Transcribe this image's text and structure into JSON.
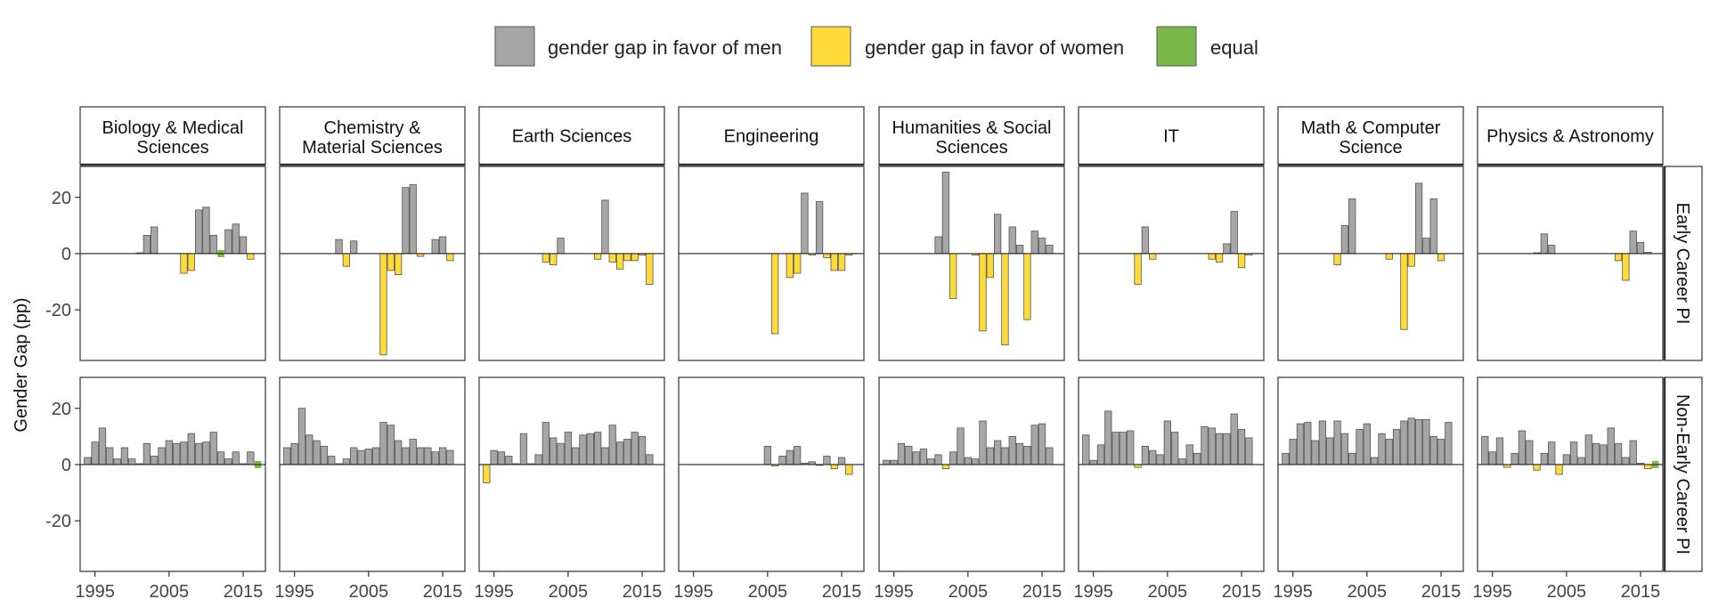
{
  "chart_data": {
    "type": "bar",
    "ylabel": "Gender Gap (pp)",
    "ylim": [
      -38,
      31
    ],
    "yticks": [
      20,
      0,
      -20
    ],
    "ytick_labels": [
      "20",
      "0",
      "-20"
    ],
    "xlim": [
      1993,
      2018
    ],
    "xticks": [
      1995,
      2005,
      2015
    ],
    "xtick_labels": [
      "1995",
      "2005",
      "2015"
    ],
    "legend": {
      "placement": "top",
      "entries": [
        {
          "key": "men",
          "label": "gender gap in favor of men",
          "color": "#a6a6a6"
        },
        {
          "key": "women",
          "label": "gender gap in favor of women",
          "color": "#ffdb3a"
        },
        {
          "key": "equal",
          "label": "equal",
          "color": "#7ab84a"
        }
      ]
    },
    "colors": {
      "men": "#a6a6a6",
      "women": "#ffdb3a",
      "equal": "#7ab84a",
      "bar_stroke": "#555555"
    },
    "columns": [
      {
        "lines": [
          "Biology & Medical",
          "Sciences"
        ]
      },
      {
        "lines": [
          "Chemistry &",
          "Material Sciences"
        ]
      },
      {
        "lines": [
          "Earth Sciences"
        ]
      },
      {
        "lines": [
          "Engineering"
        ]
      },
      {
        "lines": [
          "Humanities & Social",
          "Sciences"
        ]
      },
      {
        "lines": [
          "IT"
        ]
      },
      {
        "lines": [
          "Math & Computer",
          "Science"
        ]
      },
      {
        "lines": [
          "Physics & Astronomy"
        ]
      }
    ],
    "rows": [
      {
        "label": "Early Career PI"
      },
      {
        "label": "Non-Early Career PI"
      }
    ],
    "panels": [
      [
        {
          "years": [
            2001,
            2002,
            2003,
            2007,
            2008,
            2009,
            2010,
            2011,
            2012,
            2013,
            2014,
            2015,
            2016
          ],
          "values": [
            0.3,
            6.5,
            9.5,
            -7,
            -6,
            15.5,
            16.5,
            6.5,
            0,
            8.5,
            10.5,
            6,
            -2
          ]
        },
        {
          "years": [
            2001,
            2002,
            2003,
            2007,
            2008,
            2009,
            2010,
            2011,
            2012,
            2014,
            2015,
            2016
          ],
          "values": [
            5,
            -4.5,
            4.5,
            -36,
            -6,
            -7.5,
            23.5,
            24.5,
            -1,
            5,
            6,
            -2.5
          ]
        },
        {
          "years": [
            2002,
            2003,
            2004,
            2009,
            2010,
            2011,
            2012,
            2013,
            2014,
            2015,
            2016
          ],
          "values": [
            -3,
            -4,
            5.5,
            -2,
            19,
            -3,
            -5.5,
            -2.5,
            -2.5,
            -0.5,
            -11
          ]
        },
        {
          "years": [
            2006,
            2008,
            2009,
            2010,
            2011,
            2012,
            2013,
            2014,
            2015,
            2016
          ],
          "values": [
            -28.5,
            -8.5,
            -7,
            21.5,
            -0.5,
            18.5,
            -1.5,
            -6,
            -6,
            -0.5
          ]
        },
        {
          "years": [
            2001,
            2002,
            2003,
            2006,
            2007,
            2008,
            2009,
            2010,
            2011,
            2012,
            2013,
            2014,
            2015,
            2016
          ],
          "values": [
            6,
            29,
            -16,
            -0.5,
            -27.5,
            -8.5,
            14,
            -32.5,
            9.5,
            3,
            -23.5,
            8,
            5.5,
            3
          ]
        },
        {
          "years": [
            2001,
            2002,
            2003,
            2011,
            2012,
            2013,
            2014,
            2015,
            2016
          ],
          "values": [
            -11,
            9.5,
            -2,
            -2,
            -3,
            3.5,
            15,
            -5,
            -0.5
          ]
        },
        {
          "years": [
            2001,
            2002,
            2003,
            2008,
            2010,
            2011,
            2012,
            2013,
            2014,
            2015
          ],
          "values": [
            -4,
            10,
            19.5,
            -2,
            -27,
            -4.5,
            25,
            5.5,
            19.5,
            -2.5
          ]
        },
        {
          "years": [
            2001,
            2002,
            2003,
            2012,
            2013,
            2014,
            2015,
            2016
          ],
          "values": [
            0.3,
            7,
            3,
            -2.5,
            -9.5,
            8,
            4,
            0.5
          ]
        }
      ],
      [
        {
          "years": [
            1994,
            1995,
            1996,
            1997,
            1998,
            1999,
            2000,
            2001,
            2002,
            2003,
            2004,
            2005,
            2006,
            2007,
            2008,
            2009,
            2010,
            2011,
            2012,
            2013,
            2014,
            2015,
            2016,
            2017
          ],
          "values": [
            2.5,
            8,
            13,
            6,
            2,
            6,
            2,
            0.3,
            7.5,
            3,
            6,
            8.5,
            7.5,
            8,
            11,
            7.5,
            8,
            11.5,
            4.5,
            2,
            4.5,
            0.3,
            4.5,
            0
          ]
        },
        {
          "years": [
            1994,
            1995,
            1996,
            1997,
            1998,
            1999,
            2000,
            2001,
            2002,
            2003,
            2004,
            2005,
            2006,
            2007,
            2008,
            2009,
            2010,
            2011,
            2012,
            2013,
            2014,
            2015,
            2016
          ],
          "values": [
            6,
            7.5,
            20,
            10.5,
            8.5,
            6.5,
            3,
            0.3,
            2,
            6,
            5,
            5.5,
            6,
            15,
            14,
            8.5,
            6,
            9,
            6,
            6,
            4.5,
            6,
            5
          ]
        },
        {
          "years": [
            1994,
            1995,
            1996,
            1997,
            1998,
            1999,
            2000,
            2001,
            2002,
            2003,
            2004,
            2005,
            2006,
            2007,
            2008,
            2009,
            2010,
            2011,
            2012,
            2013,
            2014,
            2015,
            2016
          ],
          "values": [
            -6.5,
            5,
            4.5,
            3,
            0.3,
            11,
            0.3,
            3.5,
            15,
            9.5,
            7.5,
            11.5,
            6,
            10.5,
            11,
            11.5,
            6,
            14,
            8,
            9,
            11.5,
            10,
            3.5
          ]
        },
        {
          "years": [
            2005,
            2006,
            2007,
            2008,
            2009,
            2010,
            2011,
            2012,
            2013,
            2014,
            2015,
            2016
          ],
          "values": [
            6.5,
            -0.5,
            3,
            5,
            6.5,
            0.5,
            1,
            -0.3,
            3,
            -1.5,
            2.5,
            -3.5
          ]
        },
        {
          "years": [
            1994,
            1995,
            1996,
            1997,
            1998,
            1999,
            2000,
            2001,
            2002,
            2003,
            2004,
            2005,
            2006,
            2007,
            2008,
            2009,
            2010,
            2011,
            2012,
            2013,
            2014,
            2015,
            2016
          ],
          "values": [
            1.5,
            1.5,
            7.5,
            6.5,
            4.5,
            5.5,
            2,
            3.5,
            -1.5,
            4.5,
            13,
            2.5,
            2,
            15.5,
            6,
            8.5,
            6,
            10,
            7.5,
            6.5,
            14,
            14.5,
            6
          ]
        },
        {
          "years": [
            1994,
            1995,
            1996,
            1997,
            1998,
            1999,
            2000,
            2001,
            2002,
            2003,
            2004,
            2005,
            2006,
            2007,
            2008,
            2009,
            2010,
            2011,
            2012,
            2013,
            2014,
            2015,
            2016
          ],
          "values": [
            10.5,
            1.5,
            7,
            19,
            11.5,
            11.5,
            12,
            -1,
            6.5,
            5,
            3.5,
            15.5,
            11.5,
            2,
            7,
            4,
            13.5,
            13,
            11,
            11,
            18,
            12.5,
            9.5
          ]
        },
        {
          "years": [
            1994,
            1995,
            1996,
            1997,
            1998,
            1999,
            2000,
            2001,
            2002,
            2003,
            2004,
            2005,
            2006,
            2007,
            2008,
            2009,
            2010,
            2011,
            2012,
            2013,
            2014,
            2015,
            2016
          ],
          "values": [
            4,
            9,
            14.5,
            15,
            8.5,
            15.5,
            9.5,
            15.5,
            11,
            4,
            12.5,
            14.5,
            2.5,
            11,
            9,
            12.5,
            15.5,
            16.5,
            16,
            16,
            10,
            9,
            15
          ]
        },
        {
          "years": [
            1994,
            1995,
            1996,
            1997,
            1998,
            1999,
            2000,
            2001,
            2002,
            2003,
            2004,
            2005,
            2006,
            2007,
            2008,
            2009,
            2010,
            2011,
            2012,
            2013,
            2014,
            2015,
            2016,
            2017
          ],
          "values": [
            10,
            4.5,
            9.5,
            -1,
            4,
            12,
            8.5,
            -2,
            4,
            8,
            -3.5,
            3.5,
            8,
            2.5,
            10.5,
            7.5,
            7,
            13,
            7.5,
            2.5,
            8.5,
            0.5,
            -1.5,
            0
          ]
        }
      ]
    ]
  }
}
